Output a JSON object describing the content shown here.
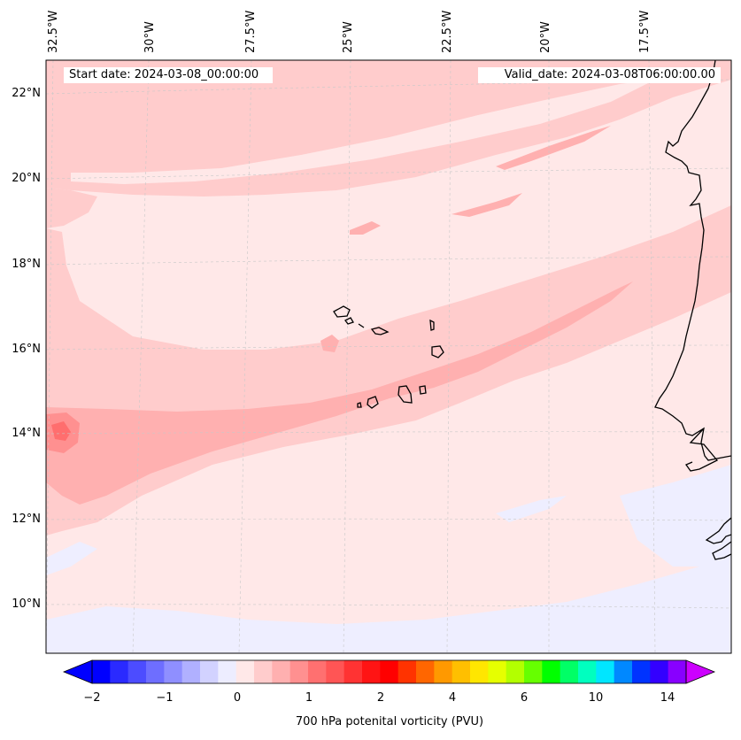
{
  "map": {
    "start_date": "Start date: 2024-03-08_00:00:00",
    "valid_date": "Valid_date: 2024-03-08T06:00:00.00",
    "longitude_labels": [
      "32.5°W",
      "30°W",
      "27.5°W",
      "25°W",
      "22.5°W",
      "20°W",
      "17.5°W"
    ],
    "latitude_labels": [
      "22°N",
      "20°N",
      "18°N",
      "16°N",
      "14°N",
      "12°N",
      "10°N"
    ],
    "features": [
      "Cape Verde islands",
      "West African coastline"
    ]
  },
  "colorbar": {
    "label": "700 hPa potenital vorticity (PVU)",
    "ticks": [
      "−2",
      "−1",
      "0",
      "1",
      "2",
      "4",
      "6",
      "10",
      "14"
    ],
    "colors": [
      "#0000ff",
      "#2a2aff",
      "#4c4cff",
      "#6e6eff",
      "#8f8fff",
      "#b0b0ff",
      "#d2d2ff",
      "#ededff",
      "#ffe8e8",
      "#ffcccc",
      "#ffb0b0",
      "#ff9090",
      "#ff7070",
      "#ff5555",
      "#ff3333",
      "#ff1414",
      "#ff0000",
      "#ff3300",
      "#ff6600",
      "#ff9900",
      "#ffbf00",
      "#ffe600",
      "#e6ff00",
      "#b3ff00",
      "#66ff00",
      "#00ff00",
      "#00ff66",
      "#00ffbf",
      "#00e6ff",
      "#0088ff",
      "#0033ff",
      "#3300ff",
      "#8800ff"
    ],
    "extend_low": "#0000ff",
    "extend_high": "#cc00ff"
  }
}
